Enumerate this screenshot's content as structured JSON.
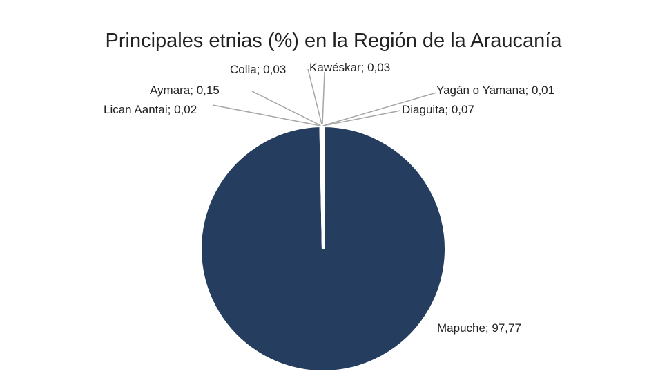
{
  "chart_data": {
    "type": "pie",
    "title": "Principales etnias (%) en la Región de la Araucanía",
    "categories": [
      "Mapuche",
      "Lican Aantai",
      "Aymara",
      "Colla",
      "Kawéskar",
      "Yagán o Yamana",
      "Diaguita"
    ],
    "values": [
      97.77,
      0.02,
      0.15,
      0.03,
      0.03,
      0.01,
      0.07
    ],
    "value_labels": [
      "Mapuche; 97,77",
      "Lican Aantai; 0,02",
      "Aymara; 0,15",
      "Colla; 0,03",
      "Kawéskar; 0,03",
      "Yagán o Yamana; 0,01",
      "Diaguita; 0,07"
    ],
    "color": "#253d5e"
  }
}
